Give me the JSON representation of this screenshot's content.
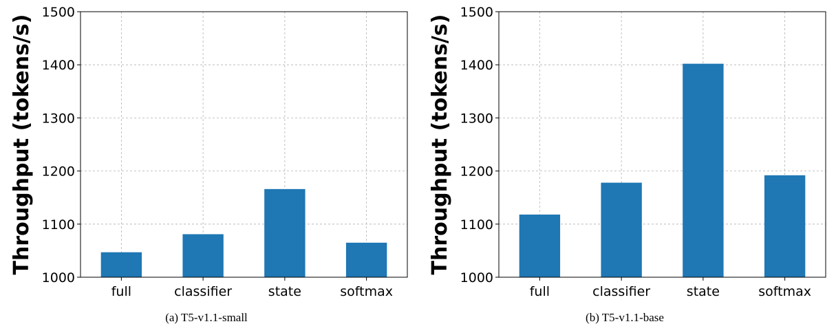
{
  "chart_data": [
    {
      "type": "bar",
      "title": "",
      "xlabel": "",
      "ylabel": "Throughput (tokens/s)",
      "ylim": [
        1000,
        1500
      ],
      "yticks": [
        1000,
        1100,
        1200,
        1300,
        1400,
        1500
      ],
      "categories": [
        "full",
        "classifier",
        "state",
        "softmax"
      ],
      "values": [
        1047,
        1081,
        1166,
        1065
      ],
      "grid": true,
      "bar_color": "#1f77b4",
      "caption": "(a)  T5-v1.1-small"
    },
    {
      "type": "bar",
      "title": "",
      "xlabel": "",
      "ylabel": "Throughput (tokens/s)",
      "ylim": [
        1000,
        1500
      ],
      "yticks": [
        1000,
        1100,
        1200,
        1300,
        1400,
        1500
      ],
      "categories": [
        "full",
        "classifier",
        "state",
        "softmax"
      ],
      "values": [
        1118,
        1178,
        1402,
        1192
      ],
      "grid": true,
      "bar_color": "#1f77b4",
      "caption": "(b)  T5-v1.1-base"
    }
  ]
}
